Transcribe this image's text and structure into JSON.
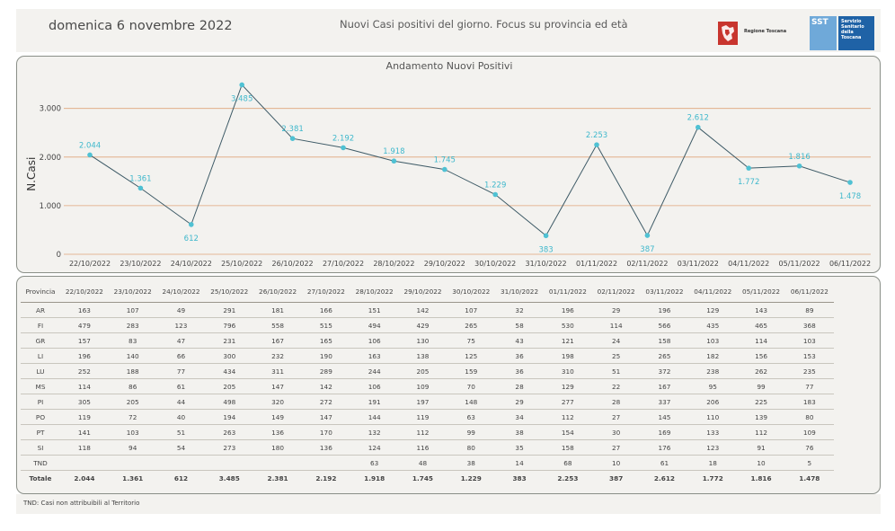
{
  "header": {
    "date": "domenica 6 novembre 2022",
    "subtitle": "Nuovi Casi positivi del giorno. Focus su provincia ed età",
    "logo_regione_text": "Regione Toscana",
    "logo_sst_text": "SST",
    "logo_sst_lines": [
      "Servizio",
      "Sanitario",
      "della",
      "Toscana"
    ]
  },
  "colors": {
    "panel_bg": "#f3f2ef",
    "line": "#3d5a66",
    "marker": "#4fc1d3",
    "label": "#3fb8cc",
    "grid": "#e0a47a"
  },
  "chart_data": {
    "type": "line",
    "title": "Andamento Nuovi Positivi",
    "ylabel": "N.Casi",
    "xlabel": "",
    "ylim": [
      0,
      3700
    ],
    "yticks": [
      0,
      1000,
      2000,
      3000
    ],
    "ytick_labels": [
      "0",
      "1.000",
      "2.000",
      "3.000"
    ],
    "grid": true,
    "categories": [
      "22/10/2022",
      "23/10/2022",
      "24/10/2022",
      "25/10/2022",
      "26/10/2022",
      "27/10/2022",
      "28/10/2022",
      "29/10/2022",
      "30/10/2022",
      "31/10/2022",
      "01/11/2022",
      "02/11/2022",
      "03/11/2022",
      "04/11/2022",
      "05/11/2022",
      "06/11/2022"
    ],
    "values": [
      2044,
      1361,
      612,
      3485,
      2381,
      2192,
      1918,
      1745,
      1229,
      383,
      2253,
      387,
      2612,
      1772,
      1816,
      1478
    ],
    "value_labels": [
      "2.044",
      "1.361",
      "612",
      "3.485",
      "2.381",
      "2.192",
      "1.918",
      "1.745",
      "1.229",
      "383",
      "2.253",
      "387",
      "2.612",
      "1.772",
      "1.816",
      "1.478"
    ],
    "label_positions": [
      "above",
      "above",
      "below",
      "below",
      "above",
      "above",
      "above",
      "above",
      "above",
      "below",
      "above",
      "below",
      "above",
      "below",
      "above",
      "below"
    ]
  },
  "table": {
    "header_label": "Provincia",
    "dates": [
      "22/10/2022",
      "23/10/2022",
      "24/10/2022",
      "25/10/2022",
      "26/10/2022",
      "27/10/2022",
      "28/10/2022",
      "29/10/2022",
      "30/10/2022",
      "31/10/2022",
      "01/11/2022",
      "02/11/2022",
      "03/11/2022",
      "04/11/2022",
      "05/11/2022",
      "06/11/2022"
    ],
    "rows": [
      {
        "name": "AR",
        "values": [
          "163",
          "107",
          "49",
          "291",
          "181",
          "166",
          "151",
          "142",
          "107",
          "32",
          "196",
          "29",
          "196",
          "129",
          "143",
          "89"
        ]
      },
      {
        "name": "FI",
        "values": [
          "479",
          "283",
          "123",
          "796",
          "558",
          "515",
          "494",
          "429",
          "265",
          "58",
          "530",
          "114",
          "566",
          "435",
          "465",
          "368"
        ]
      },
      {
        "name": "GR",
        "values": [
          "157",
          "83",
          "47",
          "231",
          "167",
          "165",
          "106",
          "130",
          "75",
          "43",
          "121",
          "24",
          "158",
          "103",
          "114",
          "103"
        ]
      },
      {
        "name": "LI",
        "values": [
          "196",
          "140",
          "66",
          "300",
          "232",
          "190",
          "163",
          "138",
          "125",
          "36",
          "198",
          "25",
          "265",
          "182",
          "156",
          "153"
        ]
      },
      {
        "name": "LU",
        "values": [
          "252",
          "188",
          "77",
          "434",
          "311",
          "289",
          "244",
          "205",
          "159",
          "36",
          "310",
          "51",
          "372",
          "238",
          "262",
          "235"
        ]
      },
      {
        "name": "MS",
        "values": [
          "114",
          "86",
          "61",
          "205",
          "147",
          "142",
          "106",
          "109",
          "70",
          "28",
          "129",
          "22",
          "167",
          "95",
          "99",
          "77"
        ]
      },
      {
        "name": "PI",
        "values": [
          "305",
          "205",
          "44",
          "498",
          "320",
          "272",
          "191",
          "197",
          "148",
          "29",
          "277",
          "28",
          "337",
          "206",
          "225",
          "183"
        ]
      },
      {
        "name": "PO",
        "values": [
          "119",
          "72",
          "40",
          "194",
          "149",
          "147",
          "144",
          "119",
          "63",
          "34",
          "112",
          "27",
          "145",
          "110",
          "139",
          "80"
        ]
      },
      {
        "name": "PT",
        "values": [
          "141",
          "103",
          "51",
          "263",
          "136",
          "170",
          "132",
          "112",
          "99",
          "38",
          "154",
          "30",
          "169",
          "133",
          "112",
          "109"
        ]
      },
      {
        "name": "SI",
        "values": [
          "118",
          "94",
          "54",
          "273",
          "180",
          "136",
          "124",
          "116",
          "80",
          "35",
          "158",
          "27",
          "176",
          "123",
          "91",
          "76"
        ]
      },
      {
        "name": "TND",
        "values": [
          "",
          "",
          "",
          "",
          "",
          "",
          "63",
          "48",
          "38",
          "14",
          "68",
          "10",
          "61",
          "18",
          "10",
          "5"
        ]
      }
    ],
    "total": {
      "name": "Totale",
      "values": [
        "2.044",
        "1.361",
        "612",
        "3.485",
        "2.381",
        "2.192",
        "1.918",
        "1.745",
        "1.229",
        "383",
        "2.253",
        "387",
        "2.612",
        "1.772",
        "1.816",
        "1.478"
      ]
    }
  },
  "footnote": "TND:  Casi non attribuibili al Territorio"
}
